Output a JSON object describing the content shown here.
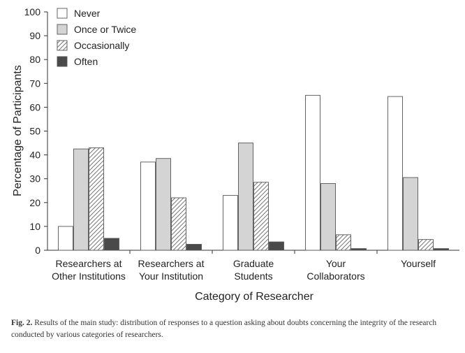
{
  "chart_data": {
    "type": "bar",
    "categories": [
      [
        "Researchers at",
        "Other Institutions"
      ],
      [
        "Researchers at",
        "Your Institution"
      ],
      [
        "Graduate",
        "Students"
      ],
      [
        "Your",
        "Collaborators"
      ],
      [
        "Yourself"
      ]
    ],
    "series": [
      {
        "name": "Never",
        "values": [
          10,
          37,
          23,
          65,
          64.5
        ],
        "style": "white"
      },
      {
        "name": "Once or Twice",
        "values": [
          42.5,
          38.5,
          45,
          28,
          30.5
        ],
        "style": "lightgray"
      },
      {
        "name": "Occasionally",
        "values": [
          43,
          22,
          28.5,
          6.5,
          4.5
        ],
        "style": "hatched"
      },
      {
        "name": "Often",
        "values": [
          5,
          2.5,
          3.5,
          0.7,
          0.7
        ],
        "style": "darkgray"
      }
    ],
    "title": "",
    "xlabel": "Category of Researcher",
    "ylabel": "Percentage of Participants",
    "ylim": [
      0,
      100
    ],
    "yticks": [
      0,
      10,
      20,
      30,
      40,
      50,
      60,
      70,
      80,
      90,
      100
    ],
    "grid": false,
    "legend_position": "top-left",
    "colors": {
      "white": "#ffffff",
      "lightgray": "#d4d4d4",
      "hatched_line": "#777777",
      "darkgray": "#4a4a4a",
      "outline": "#555555",
      "axis": "#333333"
    }
  },
  "caption": {
    "label": "Fig. 2.",
    "text": "Results of the main study: distribution of responses to a question asking about doubts concerning the integrity of the research conducted by various categories of researchers."
  }
}
